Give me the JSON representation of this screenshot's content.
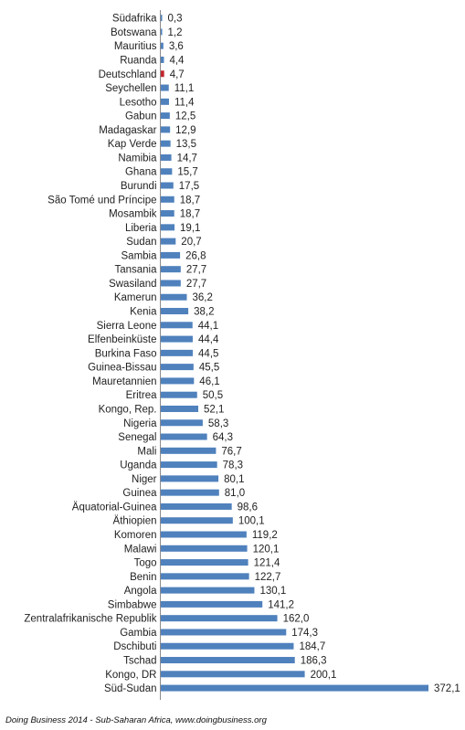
{
  "chart_data": {
    "type": "bar",
    "orientation": "horizontal",
    "categories": [
      "Südafrika",
      "Botswana",
      "Mauritius",
      "Ruanda",
      "Deutschland",
      "Seychellen",
      "Lesotho",
      "Gabun",
      "Madagaskar",
      "Kap Verde",
      "Namibia",
      "Ghana",
      "Burundi",
      "São Tomé und Príncipe",
      "Mosambik",
      "Liberia",
      "Sudan",
      "Sambia",
      "Tansania",
      "Swasiland",
      "Kamerun",
      "Kenia",
      "Sierra Leone",
      "Elfenbeinküste",
      "Burkina Faso",
      "Guinea-Bissau",
      "Mauretannien",
      "Eritrea",
      "Kongo, Rep.",
      "Nigeria",
      "Senegal",
      "Mali",
      "Uganda",
      "Niger",
      "Guinea",
      "Äquatorial-Guinea",
      "Äthiopien",
      "Komoren",
      "Malawi",
      "Togo",
      "Benin",
      "Angola",
      "Simbabwe",
      "Zentralafrikanische Republik",
      "Gambia",
      "Dschibuti",
      "Tschad",
      "Kongo, DR",
      "Süd-Sudan"
    ],
    "values": [
      0.3,
      1.2,
      3.6,
      4.4,
      4.7,
      11.1,
      11.4,
      12.5,
      12.9,
      13.5,
      14.7,
      15.7,
      17.5,
      18.7,
      18.7,
      19.1,
      20.7,
      26.8,
      27.7,
      27.7,
      36.2,
      38.2,
      44.1,
      44.4,
      44.5,
      45.5,
      46.1,
      50.5,
      52.1,
      58.3,
      64.3,
      76.7,
      78.3,
      80.1,
      81.0,
      98.6,
      100.1,
      119.2,
      120.1,
      121.4,
      122.7,
      130.1,
      141.2,
      162.0,
      174.3,
      184.7,
      186.3,
      200.1,
      372.1
    ],
    "value_labels": [
      "0,3",
      "1,2",
      "3,6",
      "4,4",
      "4,7",
      "11,1",
      "11,4",
      "12,5",
      "12,9",
      "13,5",
      "14,7",
      "15,7",
      "17,5",
      "18,7",
      "18,7",
      "19,1",
      "20,7",
      "26,8",
      "27,7",
      "27,7",
      "36,2",
      "38,2",
      "44,1",
      "44,4",
      "44,5",
      "45,5",
      "46,1",
      "50,5",
      "52,1",
      "58,3",
      "64,3",
      "76,7",
      "78,3",
      "80,1",
      "81,0",
      "98,6",
      "100,1",
      "119,2",
      "120,1",
      "121,4",
      "122,7",
      "130,1",
      "141,2",
      "162,0",
      "174,3",
      "184,7",
      "186,3",
      "200,1",
      "372,1"
    ],
    "highlight_category": "Deutschland",
    "bar_color": "#4F81BD",
    "highlight_color": "#C0272D",
    "grid": false,
    "title": "",
    "xlabel": "",
    "ylabel": ""
  },
  "source": "Doing Business 2014 - Sub-Saharan Africa, www.doingbusiness.org"
}
